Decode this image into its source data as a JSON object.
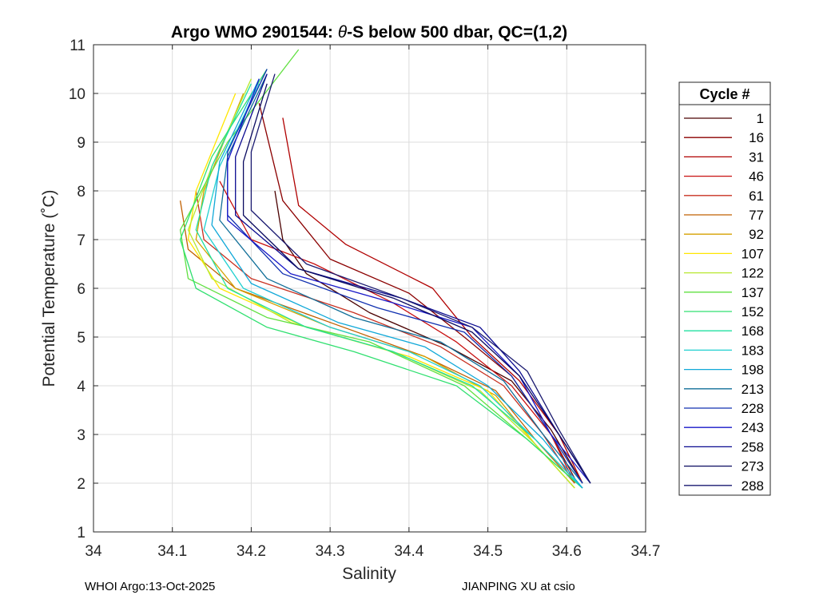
{
  "chart_data": {
    "type": "line",
    "title": "Argo WMO 2901544: θ-S below 500 dbar,  QC=(1,2)",
    "title_parts": {
      "prefix": "Argo WMO 2901544: ",
      "theta": "θ",
      "suffix": "-S below 500 dbar,  QC=(1,2)"
    },
    "xlabel": "Salinity",
    "ylabel": "Potential Temperature (˚C)",
    "xlim": [
      34.0,
      34.7
    ],
    "ylim": [
      1,
      11
    ],
    "xticks": [
      "34",
      "34.1",
      "34.2",
      "34.3",
      "34.4",
      "34.5",
      "34.6",
      "34.7"
    ],
    "yticks": [
      "1",
      "2",
      "3",
      "4",
      "5",
      "6",
      "7",
      "8",
      "9",
      "10",
      "11"
    ],
    "grid": true,
    "legend_title": "Cycle #",
    "legend_position": "right-outside",
    "series": [
      {
        "name": "1",
        "color": "#4a0000",
        "values": [
          [
            34.23,
            8.0
          ],
          [
            34.24,
            7.0
          ],
          [
            34.27,
            6.3
          ],
          [
            34.35,
            5.5
          ],
          [
            34.45,
            4.8
          ],
          [
            34.53,
            4.1
          ],
          [
            34.58,
            3.1
          ],
          [
            34.62,
            2.0
          ]
        ]
      },
      {
        "name": "16",
        "color": "#8b0000",
        "values": [
          [
            34.21,
            9.8
          ],
          [
            34.24,
            7.8
          ],
          [
            34.3,
            6.6
          ],
          [
            34.4,
            5.9
          ],
          [
            34.47,
            5.0
          ],
          [
            34.53,
            4.2
          ],
          [
            34.58,
            3.0
          ],
          [
            34.61,
            2.1
          ]
        ]
      },
      {
        "name": "31",
        "color": "#b00000",
        "values": [
          [
            34.24,
            9.5
          ],
          [
            34.26,
            7.7
          ],
          [
            34.32,
            6.9
          ],
          [
            34.43,
            6.0
          ],
          [
            34.48,
            5.0
          ],
          [
            34.54,
            4.1
          ],
          [
            34.59,
            3.0
          ],
          [
            34.62,
            2.0
          ]
        ]
      },
      {
        "name": "46",
        "color": "#c81010",
        "values": [
          [
            34.16,
            8.2
          ],
          [
            34.2,
            7.0
          ],
          [
            34.28,
            6.5
          ],
          [
            34.38,
            5.7
          ],
          [
            34.46,
            4.9
          ],
          [
            34.53,
            4.0
          ],
          [
            34.58,
            3.0
          ],
          [
            34.61,
            2.0
          ]
        ]
      },
      {
        "name": "61",
        "color": "#c83020",
        "values": [
          [
            34.13,
            8.0
          ],
          [
            34.14,
            7.0
          ],
          [
            34.2,
            6.2
          ],
          [
            34.33,
            5.5
          ],
          [
            34.44,
            4.8
          ],
          [
            34.52,
            4.0
          ],
          [
            34.57,
            3.0
          ],
          [
            34.61,
            2.0
          ]
        ]
      },
      {
        "name": "77",
        "color": "#c06000",
        "values": [
          [
            34.11,
            7.8
          ],
          [
            34.12,
            6.8
          ],
          [
            34.18,
            6.0
          ],
          [
            34.3,
            5.3
          ],
          [
            34.42,
            4.6
          ],
          [
            34.51,
            3.9
          ],
          [
            34.56,
            2.9
          ],
          [
            34.61,
            2.0
          ]
        ]
      },
      {
        "name": "92",
        "color": "#d4a000",
        "values": [
          [
            34.19,
            10.0
          ],
          [
            34.14,
            8.0
          ],
          [
            34.13,
            7.0
          ],
          [
            34.18,
            6.0
          ],
          [
            34.3,
            5.2
          ],
          [
            34.42,
            4.6
          ],
          [
            34.51,
            3.8
          ],
          [
            34.56,
            2.8
          ],
          [
            34.61,
            1.9
          ]
        ]
      },
      {
        "name": "107",
        "color": "#ffe600",
        "values": [
          [
            34.18,
            10.0
          ],
          [
            34.13,
            8.0
          ],
          [
            34.12,
            7.0
          ],
          [
            34.16,
            6.0
          ],
          [
            34.27,
            5.2
          ],
          [
            34.4,
            4.6
          ],
          [
            34.5,
            3.9
          ],
          [
            34.56,
            2.8
          ],
          [
            34.61,
            1.9
          ]
        ]
      },
      {
        "name": "122",
        "color": "#b8e830",
        "values": [
          [
            34.2,
            10.3
          ],
          [
            34.15,
            8.5
          ],
          [
            34.12,
            7.2
          ],
          [
            34.15,
            6.2
          ],
          [
            34.25,
            5.3
          ],
          [
            34.38,
            4.7
          ],
          [
            34.49,
            3.9
          ],
          [
            34.56,
            2.8
          ],
          [
            34.61,
            1.9
          ]
        ]
      },
      {
        "name": "137",
        "color": "#60e040",
        "values": [
          [
            34.26,
            10.9
          ],
          [
            34.17,
            9.0
          ],
          [
            34.11,
            7.2
          ],
          [
            34.12,
            6.2
          ],
          [
            34.22,
            5.4
          ],
          [
            34.35,
            4.9
          ],
          [
            34.47,
            4.0
          ],
          [
            34.55,
            2.9
          ],
          [
            34.62,
            1.9
          ]
        ]
      },
      {
        "name": "152",
        "color": "#30e070",
        "values": [
          [
            34.22,
            10.5
          ],
          [
            34.15,
            8.7
          ],
          [
            34.11,
            7.0
          ],
          [
            34.13,
            6.0
          ],
          [
            34.22,
            5.2
          ],
          [
            34.33,
            4.7
          ],
          [
            34.46,
            4.0
          ],
          [
            34.55,
            2.9
          ],
          [
            34.62,
            1.9
          ]
        ]
      },
      {
        "name": "168",
        "color": "#20e0a0",
        "values": [
          [
            34.2,
            10.2
          ],
          [
            34.15,
            8.5
          ],
          [
            34.13,
            7.2
          ],
          [
            34.17,
            6.0
          ],
          [
            34.27,
            5.2
          ],
          [
            34.38,
            4.7
          ],
          [
            34.48,
            4.0
          ],
          [
            34.56,
            2.9
          ],
          [
            34.62,
            1.9
          ]
        ]
      },
      {
        "name": "183",
        "color": "#20d0d0",
        "values": [
          [
            34.21,
            10.2
          ],
          [
            34.16,
            8.5
          ],
          [
            34.14,
            7.2
          ],
          [
            34.19,
            6.0
          ],
          [
            34.3,
            5.2
          ],
          [
            34.4,
            4.7
          ],
          [
            34.49,
            4.0
          ],
          [
            34.56,
            2.9
          ],
          [
            34.62,
            1.9
          ]
        ]
      },
      {
        "name": "198",
        "color": "#10a8d8",
        "values": [
          [
            34.21,
            10.3
          ],
          [
            34.16,
            8.6
          ],
          [
            34.15,
            7.3
          ],
          [
            34.2,
            6.1
          ],
          [
            34.31,
            5.3
          ],
          [
            34.42,
            4.8
          ],
          [
            34.5,
            4.0
          ],
          [
            34.57,
            2.9
          ],
          [
            34.62,
            1.9
          ]
        ]
      },
      {
        "name": "213",
        "color": "#106e98",
        "values": [
          [
            34.22,
            10.4
          ],
          [
            34.17,
            8.7
          ],
          [
            34.16,
            7.4
          ],
          [
            34.22,
            6.2
          ],
          [
            34.33,
            5.4
          ],
          [
            34.44,
            4.9
          ],
          [
            34.52,
            4.1
          ],
          [
            34.57,
            3.0
          ],
          [
            34.62,
            2.0
          ]
        ]
      },
      {
        "name": "228",
        "color": "#1030b0",
        "values": [
          [
            34.22,
            10.5
          ],
          [
            34.17,
            8.8
          ],
          [
            34.17,
            7.5
          ],
          [
            34.24,
            6.3
          ],
          [
            34.36,
            5.6
          ],
          [
            34.47,
            5.1
          ],
          [
            34.53,
            4.2
          ],
          [
            34.58,
            3.0
          ],
          [
            34.62,
            2.0
          ]
        ]
      },
      {
        "name": "243",
        "color": "#1818c8",
        "values": [
          [
            34.21,
            10.3
          ],
          [
            34.17,
            8.6
          ],
          [
            34.17,
            7.4
          ],
          [
            34.25,
            6.3
          ],
          [
            34.38,
            5.7
          ],
          [
            34.48,
            5.2
          ],
          [
            34.54,
            4.2
          ],
          [
            34.58,
            3.0
          ],
          [
            34.63,
            2.0
          ]
        ]
      },
      {
        "name": "258",
        "color": "#0a0a90",
        "values": [
          [
            34.22,
            10.4
          ],
          [
            34.18,
            8.7
          ],
          [
            34.18,
            7.5
          ],
          [
            34.26,
            6.4
          ],
          [
            34.39,
            5.8
          ],
          [
            34.49,
            5.2
          ],
          [
            34.54,
            4.3
          ],
          [
            34.59,
            3.0
          ],
          [
            34.63,
            2.0
          ]
        ]
      },
      {
        "name": "273",
        "color": "#0a0a60",
        "values": [
          [
            34.22,
            10.2
          ],
          [
            34.19,
            8.6
          ],
          [
            34.19,
            7.5
          ],
          [
            34.26,
            6.4
          ],
          [
            34.38,
            5.8
          ],
          [
            34.48,
            5.1
          ],
          [
            34.54,
            4.2
          ],
          [
            34.59,
            3.0
          ],
          [
            34.63,
            2.0
          ]
        ]
      },
      {
        "name": "288",
        "color": "#1a1a70",
        "values": [
          [
            34.23,
            10.4
          ],
          [
            34.2,
            8.8
          ],
          [
            34.2,
            7.6
          ],
          [
            34.27,
            6.5
          ],
          [
            34.39,
            5.8
          ],
          [
            34.48,
            5.2
          ],
          [
            34.55,
            4.3
          ],
          [
            34.59,
            3.1
          ],
          [
            34.63,
            2.0
          ]
        ]
      }
    ]
  },
  "footer": {
    "left": "WHOI Argo:13-Oct-2025",
    "right": "JIANPING XU at csio"
  }
}
